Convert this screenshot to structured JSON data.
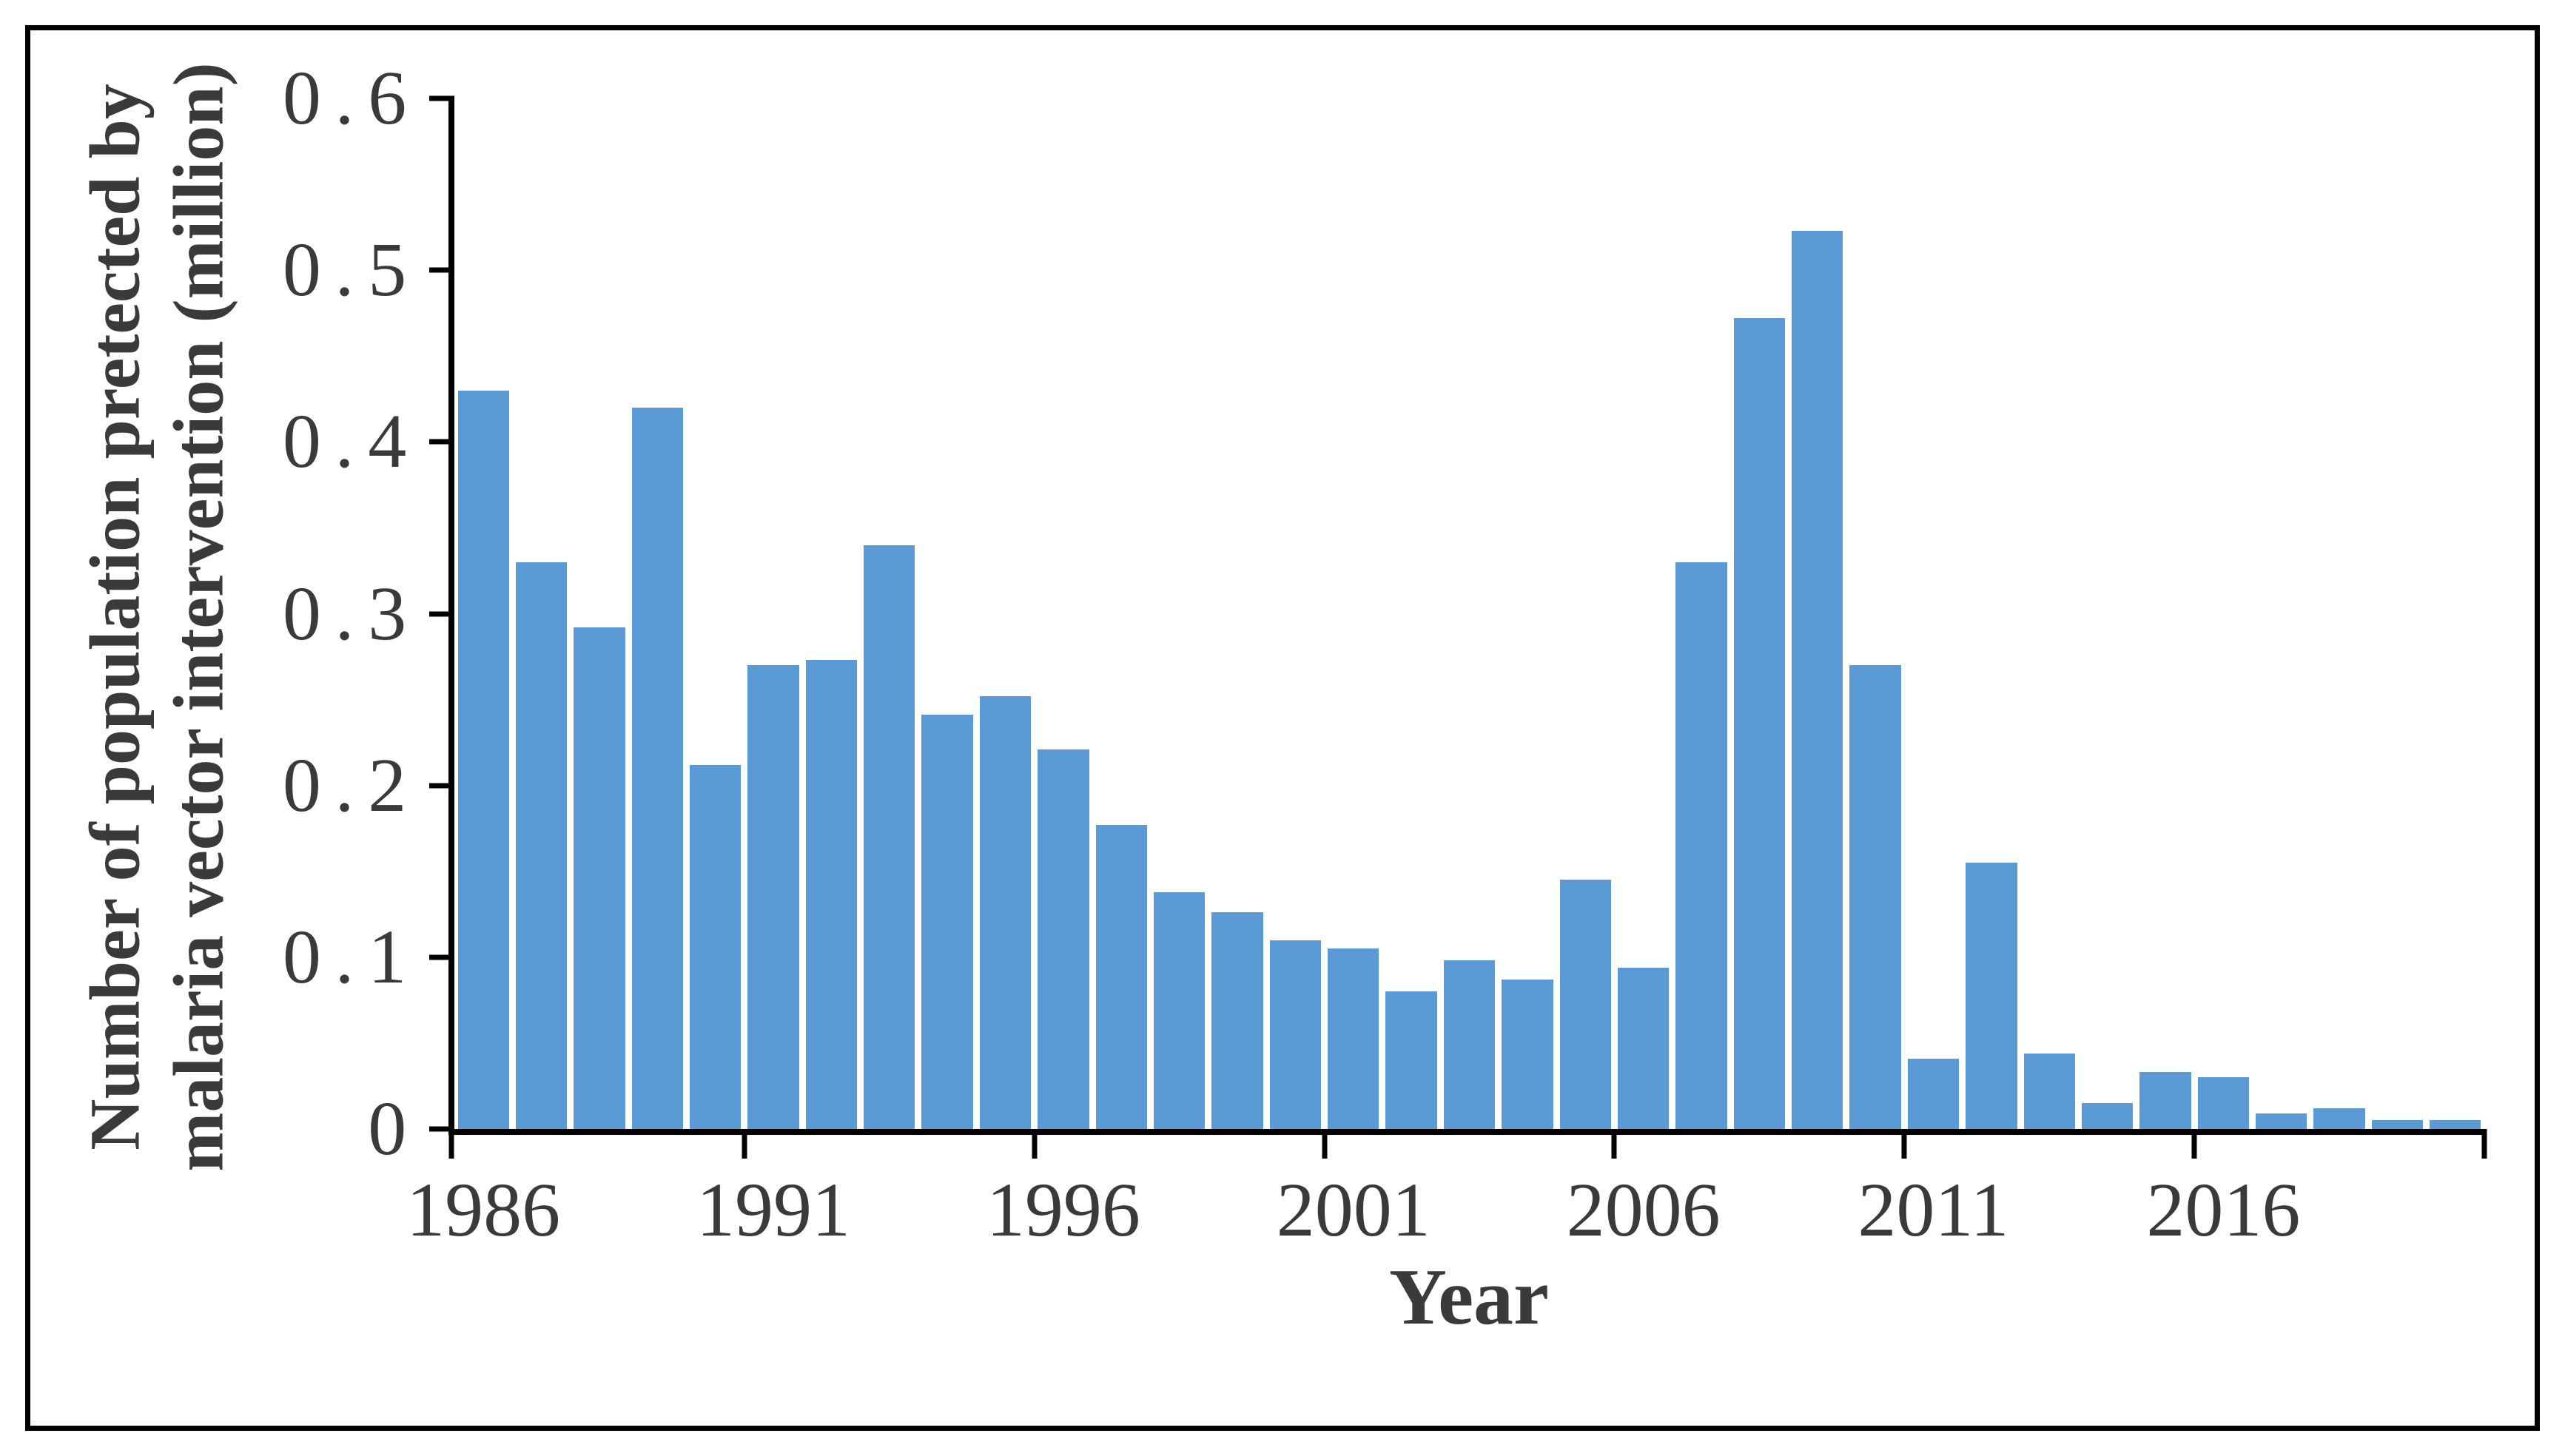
{
  "chart_data": {
    "type": "bar",
    "title": "",
    "xlabel": "Year",
    "ylabel": "Number of population pretected by malaria vector intervention (million)",
    "ylabel_lines": [
      "Number of population pretected by",
      "malaria vector intervention (million)"
    ],
    "categories": [
      1986,
      1987,
      1988,
      1989,
      1990,
      1991,
      1992,
      1993,
      1994,
      1995,
      1996,
      1997,
      1998,
      1999,
      2000,
      2001,
      2002,
      2003,
      2004,
      2005,
      2006,
      2007,
      2008,
      2009,
      2010,
      2011,
      2012,
      2013,
      2014,
      2015,
      2016,
      2017,
      2018,
      2019,
      2020
    ],
    "values": [
      0.43,
      0.33,
      0.292,
      0.42,
      0.212,
      0.27,
      0.273,
      0.34,
      0.241,
      0.252,
      0.221,
      0.177,
      0.138,
      0.126,
      0.11,
      0.105,
      0.08,
      0.098,
      0.087,
      0.145,
      0.094,
      0.33,
      0.472,
      0.523,
      0.27,
      0.041,
      0.155,
      0.044,
      0.015,
      0.033,
      0.03,
      0.009,
      0.012,
      0.005,
      0.005
    ],
    "ylim": [
      0,
      0.6
    ],
    "y_tick_labels": [
      "0",
      "0.1",
      "0.2",
      "0.3",
      "0.4",
      "0.5",
      "0.6"
    ],
    "x_tick_label_years": [
      1986,
      1991,
      1996,
      2001,
      2006,
      2011,
      2016
    ],
    "x_tick_boundary_steps": [
      0,
      5,
      10,
      15,
      20,
      25,
      30,
      35
    ],
    "bar_color": "#5B9BD5",
    "text_color": "#3A3A3A",
    "axis_color": "#000000",
    "grid": false,
    "legend_position": "none"
  }
}
